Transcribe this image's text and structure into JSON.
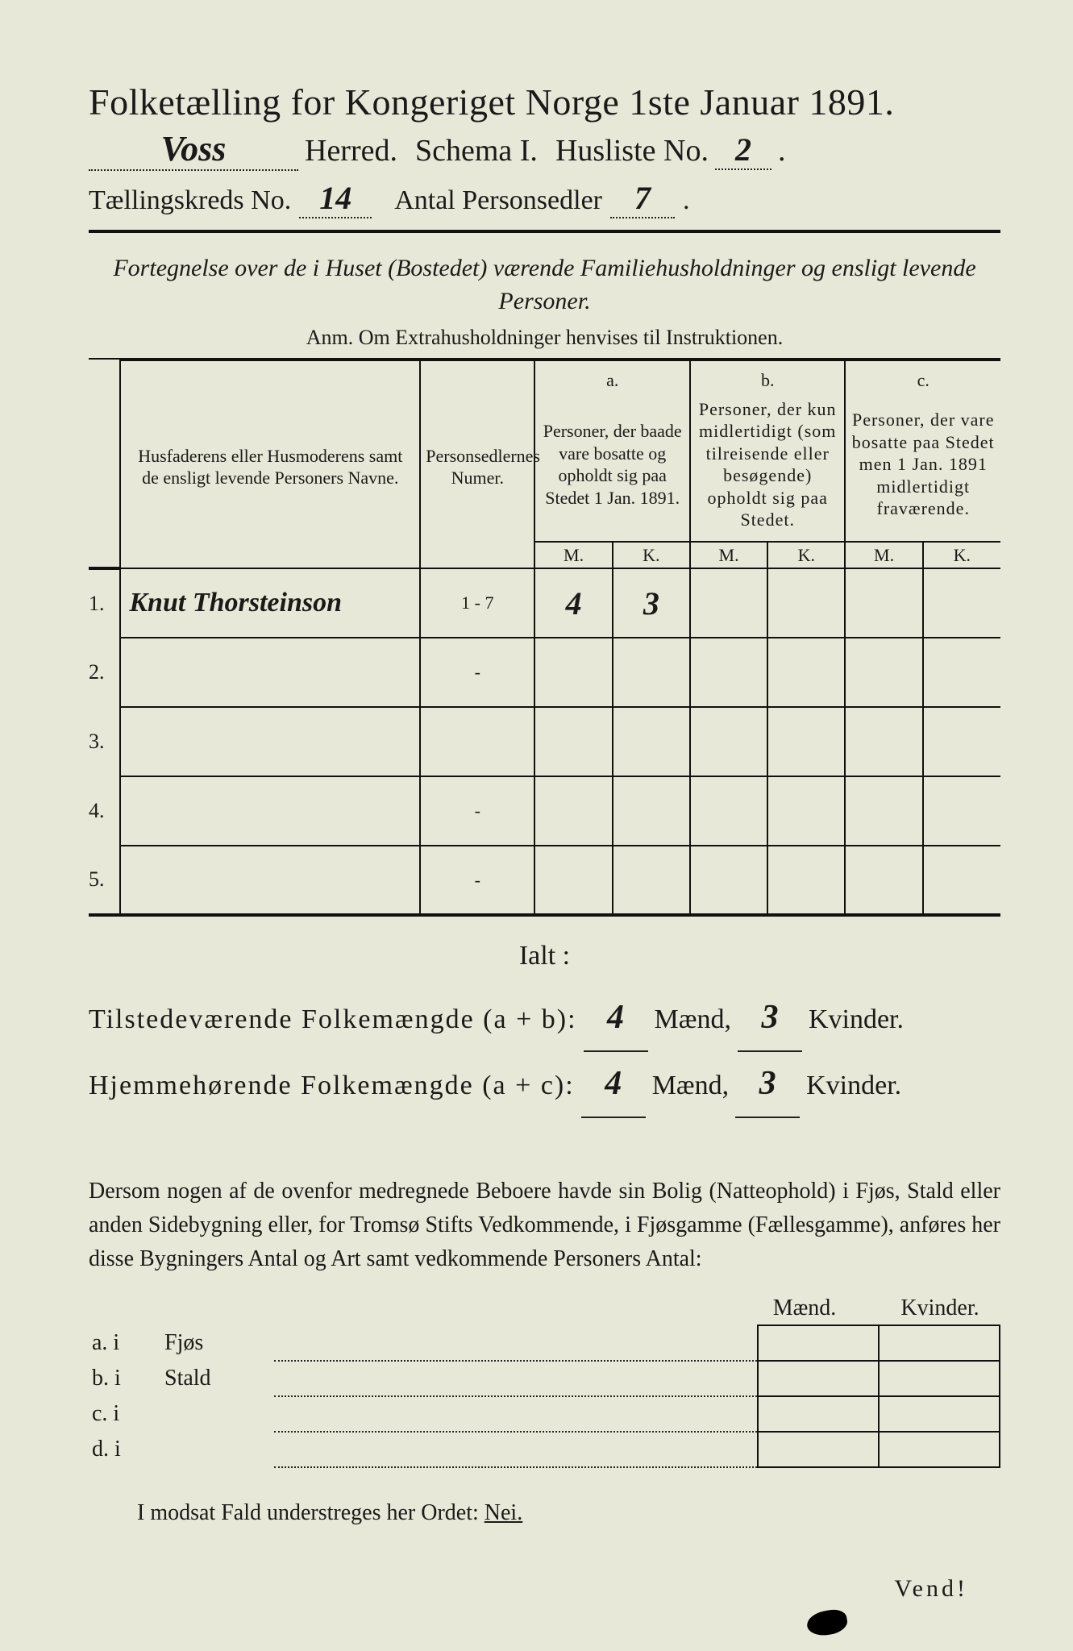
{
  "colors": {
    "paper": "#e8e8d8",
    "ink": "#1a1a1a"
  },
  "header": {
    "title": "Folketælling for Kongeriget Norge 1ste Januar 1891.",
    "herred_value": "Voss",
    "herred_label": "Herred.",
    "schema_label": "Schema I.",
    "husliste_label": "Husliste No.",
    "husliste_value": "2",
    "kreds_label": "Tællingskreds No.",
    "kreds_value": "14",
    "antal_label": "Antal Personsedler",
    "antal_value": "7"
  },
  "subhead": {
    "line": "Fortegnelse over de i Huset (Bostedet) værende Familiehusholdninger og ensligt levende Personer.",
    "anm": "Anm. Om Extrahusholdninger henvises til Instruktionen."
  },
  "table": {
    "col_name": "Husfaderens eller Husmoderens samt de ensligt levende Personers Navne.",
    "col_num": "Personsedlernes Numer.",
    "abc": {
      "a": "a.",
      "b": "b.",
      "c": "c."
    },
    "col_a": "Personer, der baade vare bosatte og opholdt sig paa Stedet 1 Jan. 1891.",
    "col_b": "Personer, der kun midlertidigt (som tilreisende eller besøgende) opholdt sig paa Stedet.",
    "col_c": "Personer, der vare bosatte paa Stedet men 1 Jan. 1891 midlertidigt fraværende.",
    "mk": {
      "m": "M.",
      "k": "K."
    },
    "rows": [
      {
        "n": "1.",
        "name": "Knut Thorsteinson",
        "num": "1 - 7",
        "am": "4",
        "ak": "3",
        "bm": "",
        "bk": "",
        "cm": "",
        "ck": ""
      },
      {
        "n": "2.",
        "name": "",
        "num": "-",
        "am": "",
        "ak": "",
        "bm": "",
        "bk": "",
        "cm": "",
        "ck": ""
      },
      {
        "n": "3.",
        "name": "",
        "num": "",
        "am": "",
        "ak": "",
        "bm": "",
        "bk": "",
        "cm": "",
        "ck": ""
      },
      {
        "n": "4.",
        "name": "",
        "num": "-",
        "am": "",
        "ak": "",
        "bm": "",
        "bk": "",
        "cm": "",
        "ck": ""
      },
      {
        "n": "5.",
        "name": "",
        "num": "-",
        "am": "",
        "ak": "",
        "bm": "",
        "bk": "",
        "cm": "",
        "ck": ""
      }
    ]
  },
  "totals": {
    "ialt": "Ialt :",
    "row1_label": "Tilstedeværende Folkemængde (a + b):",
    "row2_label": "Hjemmehørende Folkemængde (a + c):",
    "maend": "Mænd,",
    "kvinder": "Kvinder.",
    "r1m": "4",
    "r1k": "3",
    "r2m": "4",
    "r2k": "3"
  },
  "para": "Dersom nogen af de ovenfor medregnede Beboere havde sin Bolig (Natteophold) i Fjøs, Stald eller anden Sidebygning eller, for Tromsø Stifts Vedkommende, i Fjøsgamme (Fællesgamme), anføres her disse Bygningers Antal og Art samt vedkommende Personers Antal:",
  "bld": {
    "maend": "Mænd.",
    "kvinder": "Kvinder.",
    "rows": [
      {
        "p": "a.  i",
        "t": "Fjøs"
      },
      {
        "p": "b.  i",
        "t": "Stald"
      },
      {
        "p": "c.  i",
        "t": ""
      },
      {
        "p": "d.  i",
        "t": ""
      }
    ]
  },
  "footer": {
    "line_pre": "I modsat Fald understreges her Ordet: ",
    "nei": "Nei.",
    "vend": "Vend!"
  }
}
